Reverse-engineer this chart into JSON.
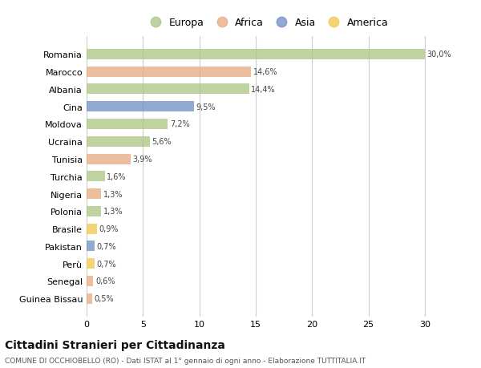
{
  "countries": [
    "Romania",
    "Marocco",
    "Albania",
    "Cina",
    "Moldova",
    "Ucraina",
    "Tunisia",
    "Turchia",
    "Nigeria",
    "Polonia",
    "Brasile",
    "Pakistan",
    "Perù",
    "Senegal",
    "Guinea Bissau"
  ],
  "values": [
    30.0,
    14.6,
    14.4,
    9.5,
    7.2,
    5.6,
    3.9,
    1.6,
    1.3,
    1.3,
    0.9,
    0.7,
    0.7,
    0.6,
    0.5
  ],
  "labels": [
    "30,0%",
    "14,6%",
    "14,4%",
    "9,5%",
    "7,2%",
    "5,6%",
    "3,9%",
    "1,6%",
    "1,3%",
    "1,3%",
    "0,9%",
    "0,7%",
    "0,7%",
    "0,6%",
    "0,5%"
  ],
  "continents": [
    "Europa",
    "Africa",
    "Europa",
    "Asia",
    "Europa",
    "Europa",
    "Africa",
    "Europa",
    "Africa",
    "Europa",
    "America",
    "Asia",
    "America",
    "Africa",
    "Africa"
  ],
  "colors": {
    "Europa": "#a8c580",
    "Africa": "#e8a97e",
    "Asia": "#6b8ec4",
    "America": "#f0c84a"
  },
  "legend_order": [
    "Europa",
    "Africa",
    "Asia",
    "America"
  ],
  "legend_colors": [
    "#a8c580",
    "#e8a97e",
    "#6b8ec4",
    "#f0c84a"
  ],
  "xlim": [
    0,
    32
  ],
  "xticks": [
    0,
    5,
    10,
    15,
    20,
    25,
    30
  ],
  "title": "Cittadini Stranieri per Cittadinanza",
  "subtitle": "COMUNE DI OCCHIOBELLO (RO) - Dati ISTAT al 1° gennaio di ogni anno - Elaborazione TUTTITALIA.IT",
  "bg_color": "#ffffff",
  "bar_alpha": 0.75
}
